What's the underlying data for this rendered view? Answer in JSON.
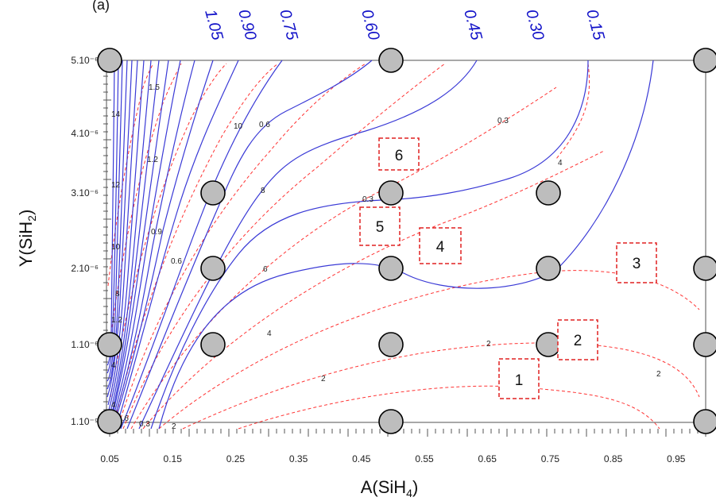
{
  "chart_data": {
    "type": "contour",
    "xlabel": "A(SiH",
    "xlabel_sub": "4",
    "xlabel_end": ")",
    "ylabel": "Y(SiH",
    "ylabel_sub": "2",
    "ylabel_end": ")",
    "partial_label": "(a)",
    "x_ticks": [
      "0.05",
      "0.15",
      "0.25",
      "0.35",
      "0.45",
      "0.55",
      "0.65",
      "0.75",
      "0.85",
      "0.95"
    ],
    "y_ticks": [
      "5.10⁻⁶",
      "4.10⁻⁶",
      "3.10⁻⁶",
      "2.10⁻⁶",
      "1.10⁻⁶",
      "1.10⁻⁹"
    ],
    "top_labels": [
      "1.05",
      "0.90",
      "0.75",
      "0.60",
      "0.45",
      "0.30",
      "0.15"
    ],
    "contour_labels_black": [
      "1.5",
      "1.2",
      "0.9",
      "0.6",
      "0.3",
      "0.6",
      "0.3",
      "0.3",
      "14",
      "12",
      "10",
      "8",
      "1.2",
      "4",
      "1.6",
      "10",
      "8",
      "6",
      "4",
      "4",
      "2",
      "2",
      "2",
      "4",
      "2"
    ],
    "region_boxes": [
      "6",
      "5",
      "4",
      "3",
      "2",
      "1"
    ],
    "design_points": [
      {
        "a": 0.05,
        "y": "5.10⁻⁶"
      },
      {
        "a": 0.5,
        "y": "5.10⁻⁶"
      },
      {
        "a": 1.0,
        "y": "5.10⁻⁶"
      },
      {
        "a": 0.22,
        "y": "3.10⁻⁶"
      },
      {
        "a": 0.5,
        "y": "3.10⁻⁶"
      },
      {
        "a": 0.75,
        "y": "3.10⁻⁶"
      },
      {
        "a": 0.22,
        "y": "2.10⁻⁶"
      },
      {
        "a": 0.5,
        "y": "2.10⁻⁶"
      },
      {
        "a": 0.75,
        "y": "2.10⁻⁶"
      },
      {
        "a": 1.0,
        "y": "2.10⁻⁶"
      },
      {
        "a": 0.05,
        "y": "1.10⁻⁶"
      },
      {
        "a": 0.22,
        "y": "1.10⁻⁶"
      },
      {
        "a": 0.5,
        "y": "1.10⁻⁶"
      },
      {
        "a": 0.75,
        "y": "1.10⁻⁶"
      },
      {
        "a": 1.0,
        "y": "1.10⁻⁶"
      },
      {
        "a": 0.05,
        "y": "1.10⁻⁹"
      },
      {
        "a": 0.5,
        "y": "1.10⁻⁹"
      },
      {
        "a": 1.0,
        "y": "1.10⁻⁹"
      }
    ],
    "colors": {
      "blue_contour": "#3a3ad6",
      "red_contour": "#ff3333",
      "top_label": "#1010c8",
      "point_fill": "#bdbdbd"
    }
  }
}
